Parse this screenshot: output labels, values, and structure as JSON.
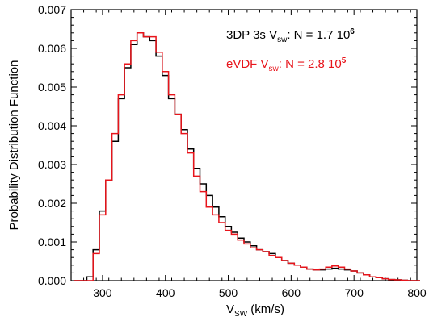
{
  "chart_data": {
    "type": "line",
    "subtype": "step-histogram",
    "xlabel": {
      "main": "V",
      "sub": "SW",
      "rest": " (km/s)"
    },
    "ylabel": "Probability Distribution Function",
    "xlim": [
      250,
      800
    ],
    "ylim": [
      0,
      0.007
    ],
    "xticks": [
      300,
      400,
      500,
      600,
      700,
      800
    ],
    "yticks": [
      "0.000",
      "0.001",
      "0.002",
      "0.003",
      "0.004",
      "0.005",
      "0.006",
      "0.007"
    ],
    "grid": false,
    "legend_position": "top-right",
    "series": [
      {
        "label": {
          "a": "3DP 3s V",
          "sub": "sw",
          "b": ": N = 1.7 10",
          "sup": "6"
        },
        "color": "#000000",
        "x": [
          260,
          270,
          280,
          290,
          300,
          310,
          320,
          330,
          340,
          350,
          360,
          370,
          380,
          390,
          400,
          410,
          420,
          430,
          440,
          450,
          460,
          470,
          480,
          490,
          500,
          510,
          520,
          530,
          540,
          550,
          560,
          570,
          580,
          590,
          600,
          610,
          620,
          630,
          640,
          650,
          660,
          670,
          680,
          690,
          700,
          710,
          720,
          730,
          740,
          750,
          760,
          770,
          780,
          790,
          800
        ],
        "y": [
          0.0,
          0.0,
          0.0001,
          0.0008,
          0.0018,
          0.0026,
          0.0036,
          0.0047,
          0.0055,
          0.0061,
          0.0064,
          0.0063,
          0.0062,
          0.0058,
          0.0053,
          0.0047,
          0.0043,
          0.0039,
          0.0034,
          0.0029,
          0.0025,
          0.0022,
          0.0019,
          0.00165,
          0.0014,
          0.00125,
          0.0011,
          0.001,
          0.0009,
          0.0008,
          0.00075,
          0.0007,
          0.0006,
          0.00052,
          0.00045,
          0.0004,
          0.00035,
          0.0003,
          0.00028,
          0.00028,
          0.0003,
          0.00032,
          0.0003,
          0.00028,
          0.00025,
          0.0002,
          0.00015,
          0.0001,
          8e-05,
          5e-05,
          3e-05,
          2e-05,
          1e-05,
          0.0,
          0.0
        ]
      },
      {
        "label": {
          "a": "eVDF V",
          "sub": "sw",
          "b": ": N = 2.8 10",
          "sup": "5"
        },
        "color": "#e8141b",
        "x": [
          260,
          270,
          280,
          290,
          300,
          310,
          320,
          330,
          340,
          350,
          360,
          370,
          380,
          390,
          400,
          410,
          420,
          430,
          440,
          450,
          460,
          470,
          480,
          490,
          500,
          510,
          520,
          530,
          540,
          550,
          560,
          570,
          580,
          590,
          600,
          610,
          620,
          630,
          640,
          650,
          660,
          670,
          680,
          690,
          700,
          710,
          720,
          730,
          740,
          750,
          760,
          770,
          780,
          790,
          800
        ],
        "y": [
          0.0,
          0.0,
          0.0,
          0.0007,
          0.0017,
          0.0026,
          0.0038,
          0.0048,
          0.0056,
          0.0062,
          0.0064,
          0.0063,
          0.0063,
          0.0059,
          0.0054,
          0.0048,
          0.0043,
          0.0038,
          0.0033,
          0.0027,
          0.0023,
          0.0019,
          0.0017,
          0.0015,
          0.0013,
          0.0012,
          0.00105,
          0.00095,
          0.00085,
          0.0008,
          0.00075,
          0.00065,
          0.0006,
          0.00052,
          0.00045,
          0.0004,
          0.00035,
          0.0003,
          0.00028,
          0.0003,
          0.00035,
          0.00038,
          0.00035,
          0.0003,
          0.00025,
          0.0002,
          0.00015,
          0.0001,
          8e-05,
          5e-05,
          3e-05,
          2e-05,
          1e-05,
          0.0,
          0.0
        ]
      }
    ]
  }
}
